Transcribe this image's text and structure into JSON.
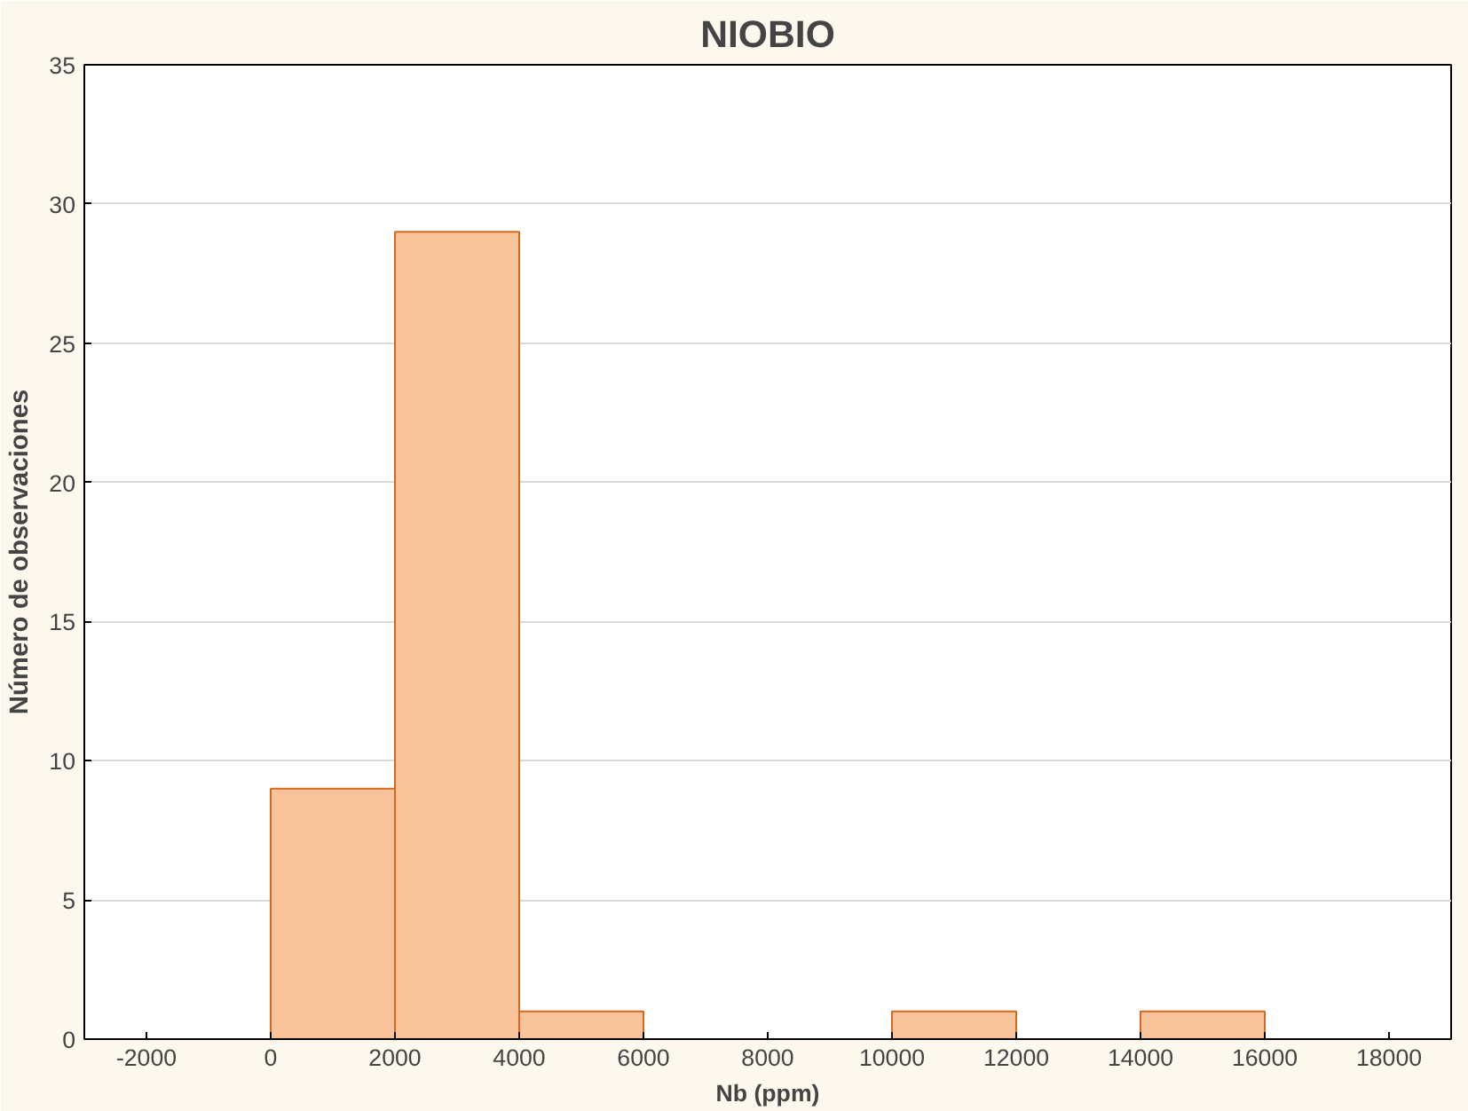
{
  "chart_data": {
    "type": "histogram",
    "title": "NIOBIO",
    "xlabel": "Nb (ppm)",
    "ylabel": "Número de observaciones",
    "bins": [
      0,
      2000,
      4000,
      6000,
      8000,
      10000,
      12000,
      14000,
      16000
    ],
    "values": [
      9,
      29,
      1,
      0,
      0,
      1,
      0,
      1
    ],
    "color": "#f8c39a",
    "xlim": [
      -3000,
      19000
    ],
    "xticks": [
      -2000,
      0,
      2000,
      4000,
      6000,
      8000,
      10000,
      12000,
      14000,
      16000,
      18000
    ],
    "ylim": [
      0,
      35
    ],
    "yticks": [
      0,
      5,
      10,
      15,
      20,
      25,
      30,
      35
    ],
    "grid": "y"
  }
}
